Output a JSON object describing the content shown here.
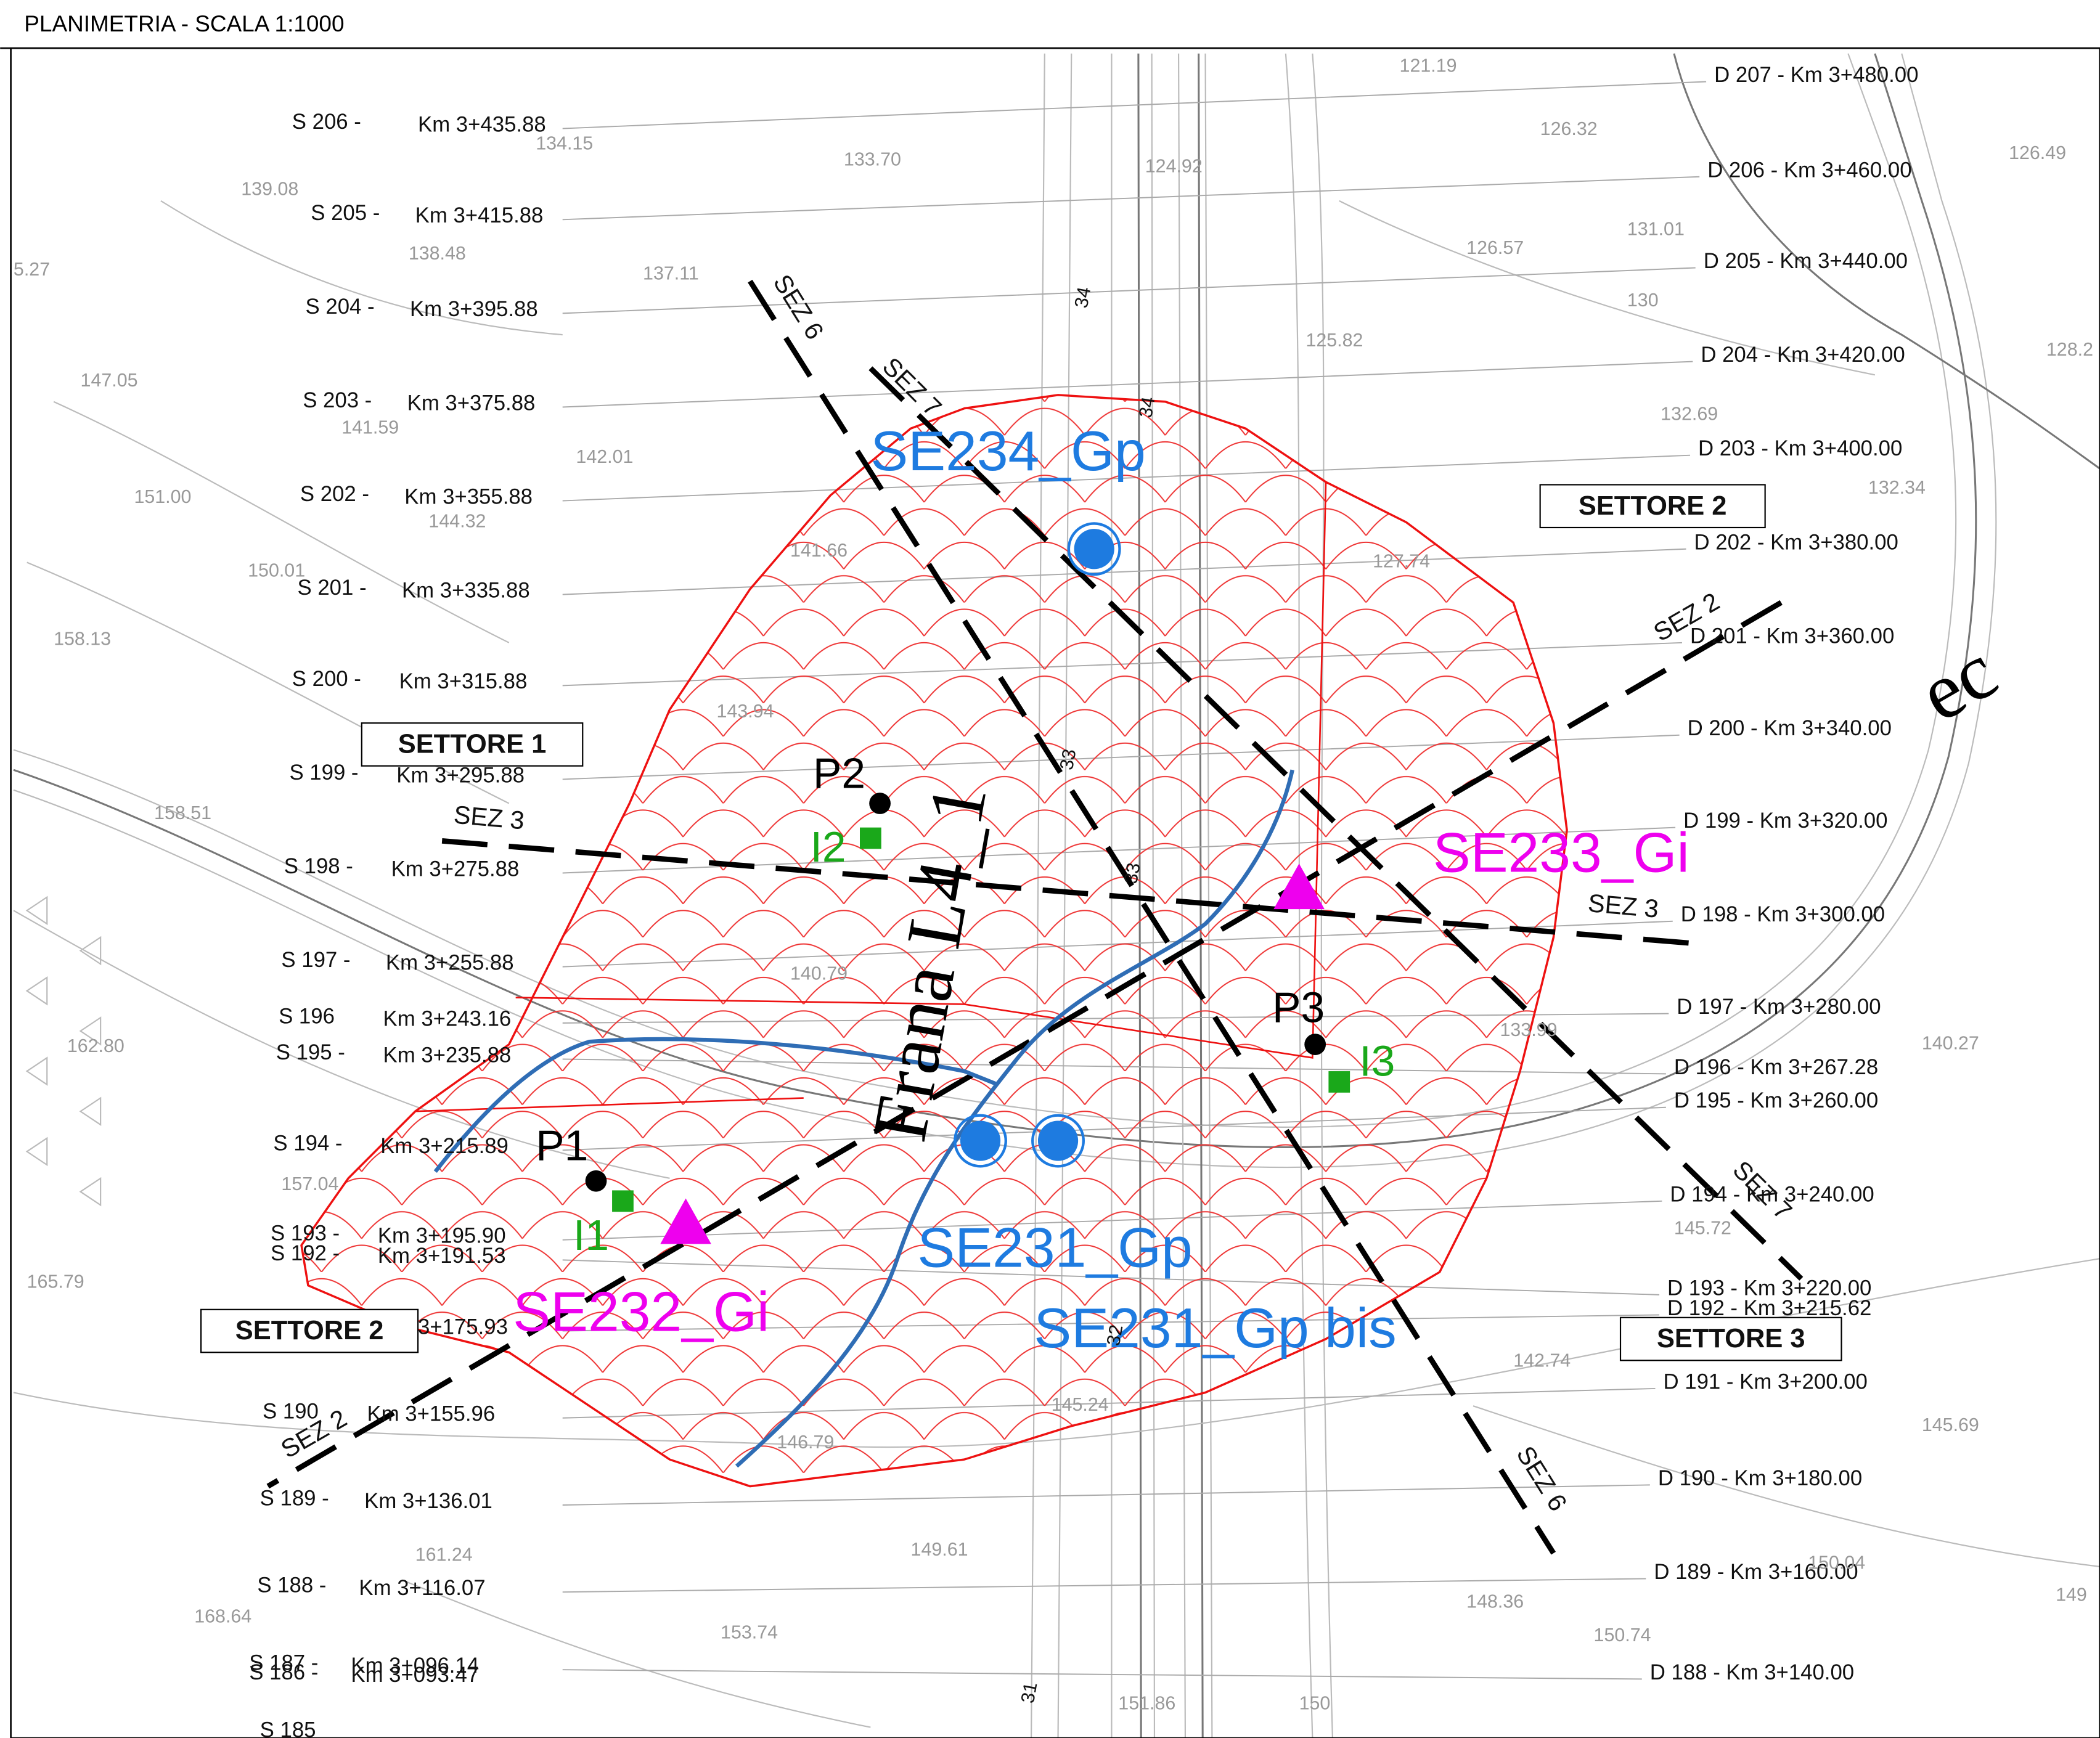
{
  "header": {
    "title": "PLANIMETRIA - SCALA 1:1000"
  },
  "stations_left": [
    {
      "section": "S 206 -",
      "km": "Km 3+435.88"
    },
    {
      "section": "S 205 -",
      "km": "Km 3+415.88"
    },
    {
      "section": "S 204 -",
      "km": "Km 3+395.88"
    },
    {
      "section": "S 203 -",
      "km": "Km 3+375.88"
    },
    {
      "section": "S 202 -",
      "km": "Km 3+355.88"
    },
    {
      "section": "S 201 -",
      "km": "Km 3+335.88"
    },
    {
      "section": "S 200 -",
      "km": "Km 3+315.88"
    },
    {
      "section": "S 199 -",
      "km": "Km 3+295.88"
    },
    {
      "section": "S 198 -",
      "km": "Km 3+275.88"
    },
    {
      "section": "S 197 -",
      "km": "Km 3+255.88"
    },
    {
      "section": "S 196",
      "km": "Km 3+243.16"
    },
    {
      "section": "S 195 -",
      "km": "Km 3+235.88"
    },
    {
      "section": "S 194 -",
      "km": "Km 3+215.89"
    },
    {
      "section": "S 193 -",
      "km": "Km 3+195.90"
    },
    {
      "section": "S 192 -",
      "km": "Km 3+191.53"
    },
    {
      "km": "3+175.93"
    },
    {
      "section": "S 190",
      "km": "Km 3+155.96"
    },
    {
      "section": "S 189 -",
      "km": "Km 3+136.01"
    },
    {
      "section": "S 188 -",
      "km": "Km 3+116.07"
    },
    {
      "section": "S 187 -",
      "km": "Km 3+096.14"
    },
    {
      "section": "S 186 -",
      "km": "Km 3+093.47"
    },
    {
      "section": "S 185"
    }
  ],
  "stations_right": [
    "D 207 - Km 3+480.00",
    "D 206 - Km 3+460.00",
    "D 205 - Km 3+440.00",
    "D 204 - Km 3+420.00",
    "D 203 - Km 3+400.00",
    "D 202 - Km 3+380.00",
    "D 201 - Km 3+360.00",
    "D 200 - Km 3+340.00",
    "D 199 - Km 3+320.00",
    "D 198 - Km 3+300.00",
    "D 197 - Km 3+280.00",
    "D 196 - Km 3+267.28",
    "D 195 - Km 3+260.00",
    "D 194 - Km 3+240.00",
    "D 193 - Km 3+220.00",
    "D 192 - Km 3+215.62",
    "D 191 - Km 3+200.00",
    "D 190 - Km 3+180.00",
    "D 189 - Km 3+160.00",
    "D 188 - Km 3+140.00"
  ],
  "sectors": [
    "SETTORE 1",
    "SETTORE 2",
    "SETTORE 2",
    "SETTORE 3"
  ],
  "section_lines": [
    "SEZ 6",
    "SEZ 6",
    "SEZ 7",
    "SEZ 7",
    "SEZ 2",
    "SEZ 2",
    "SEZ 3",
    "SEZ 3"
  ],
  "instruments": [
    "SE234_Gp",
    "SE231_Gp",
    "SE231_Gp bis",
    "SE233_Gi",
    "SE232_Gi"
  ],
  "boreholes": [
    "P1",
    "P2",
    "P3"
  ],
  "inclinometers": [
    "I1",
    "I2",
    "I3"
  ],
  "landslide": "Frana L4_1",
  "road_markers": [
    "34",
    "34",
    "33",
    "33",
    "32",
    "31"
  ],
  "other_labels": [
    "ec"
  ],
  "elevations": [
    "121.19",
    "134.15",
    "126.32",
    "131.01",
    "133.70",
    "124.92",
    "126.49",
    "139.08",
    "138.48",
    "137.11",
    "126.57",
    "5.27",
    "130",
    "125.82",
    "128.2",
    "147.05",
    "141.59",
    "132.69",
    "142.01",
    "151.00",
    "144.32",
    "132.34",
    "141.66",
    "127.74",
    "150.01",
    "158.13",
    "143.94",
    "158.51",
    "140.79",
    "133.99",
    "140.27",
    "162.80",
    "157.04",
    "145.72",
    "165.79",
    "142.74",
    "145.24",
    "146.79",
    "145.69",
    "149.61",
    "161.24",
    "150.04",
    "148.36",
    "168.64",
    "153.74",
    "150.74",
    "149",
    "150",
    "151.86"
  ]
}
